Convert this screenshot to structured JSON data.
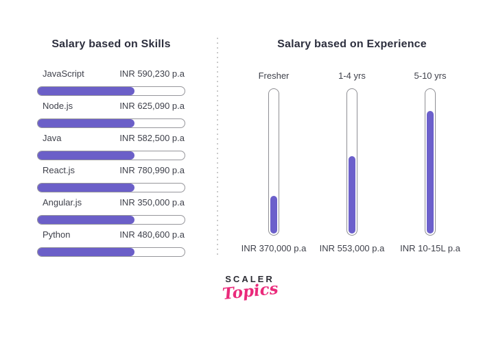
{
  "colors": {
    "purple": "#6b5fc8",
    "pink": "#ea2a7b",
    "title_dark": "#2d2f3e",
    "text": "#3d3f49",
    "bar_border": "#95959a",
    "divider": "#c9c9c9"
  },
  "skills_chart": {
    "title": "Salary based on Skills",
    "rows": [
      {
        "label": "JavaScript",
        "value": "INR 590,230 p.a",
        "fill_pct": 66
      },
      {
        "label": "Node.js",
        "value": "INR 625,090 p.a",
        "fill_pct": 66
      },
      {
        "label": "Java",
        "value": "INR 582,500 p.a",
        "fill_pct": 66
      },
      {
        "label": "React.js",
        "value": "INR 780,990 p.a",
        "fill_pct": 66
      },
      {
        "label": "Angular.js",
        "value": "INR 350,000 p.a",
        "fill_pct": 66
      },
      {
        "label": "Python",
        "value": "INR 480,600 p.a",
        "fill_pct": 66
      }
    ]
  },
  "experience_chart": {
    "title": "Salary based on Experience",
    "columns": [
      {
        "label": "Fresher",
        "value": "INR 370,000 p.a",
        "fill_pct": 26
      },
      {
        "label": "1-4 yrs",
        "value": "INR 553,000 p.a",
        "fill_pct": 53
      },
      {
        "label": "5-10 yrs",
        "value": "INR 10-15L p.a",
        "fill_pct": 84
      }
    ]
  },
  "logo": {
    "primary": "SCALER",
    "secondary": "Topics"
  },
  "chart_data": [
    {
      "type": "bar",
      "orientation": "horizontal",
      "title": "Salary based on Skills",
      "categories": [
        "JavaScript",
        "Node.js",
        "Java",
        "React.js",
        "Angular.js",
        "Python"
      ],
      "values": [
        590230,
        625090,
        582500,
        780990,
        350000,
        480600
      ],
      "value_labels": [
        "INR 590,230 p.a",
        "INR 625,090 p.a",
        "INR 582,500 p.a",
        "INR 780,990 p.a",
        "INR 350,000 p.a",
        "INR 480,600 p.a"
      ],
      "unit": "INR per annum",
      "bar_fill_pct_as_drawn": [
        66,
        66,
        66,
        66,
        66,
        66
      ],
      "note": "all bars rendered at equal decorative fill; values shown as text labels",
      "grid": false,
      "legend": false
    },
    {
      "type": "bar",
      "orientation": "vertical",
      "title": "Salary based on Experience",
      "categories": [
        "Fresher",
        "1-4 yrs",
        "5-10 yrs"
      ],
      "values": [
        370000,
        553000,
        1250000
      ],
      "value_labels": [
        "INR 370,000 p.a",
        "INR 553,000 p.a",
        "INR 10-15L p.a"
      ],
      "unit": "INR per annum",
      "bar_fill_pct_as_drawn": [
        26,
        53,
        84
      ],
      "grid": false,
      "legend": false
    }
  ]
}
